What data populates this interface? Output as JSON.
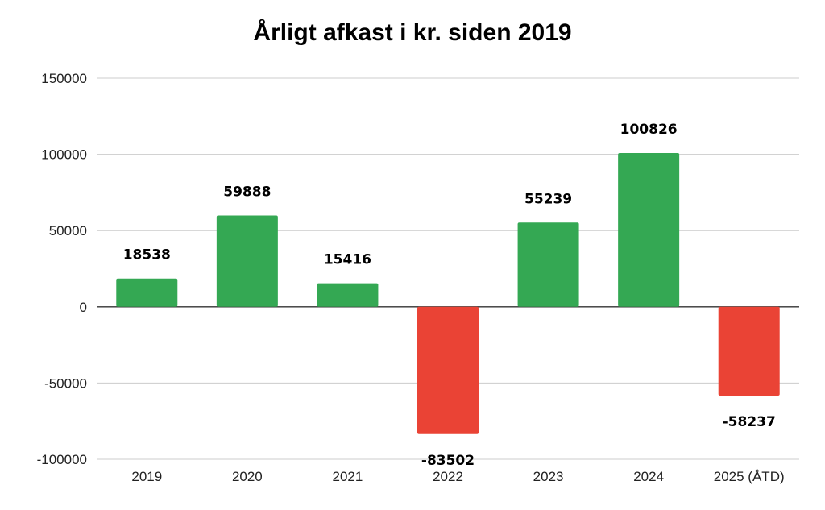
{
  "chart_data": {
    "type": "bar",
    "title": "Årligt afkast i kr. siden 2019",
    "xlabel": "",
    "ylabel": "",
    "categories": [
      "2019",
      "2020",
      "2021",
      "2022",
      "2023",
      "2024",
      "2025 (ÅTD)"
    ],
    "values": [
      18538,
      59888,
      15416,
      -83502,
      55239,
      100826,
      -58237
    ],
    "ylim": [
      -100000,
      150000
    ],
    "yticks": [
      150000,
      100000,
      50000,
      0,
      -50000,
      -100000
    ],
    "grid": true,
    "legend": "none",
    "colors": {
      "positive": "#34a853",
      "negative": "#ea4335"
    }
  }
}
